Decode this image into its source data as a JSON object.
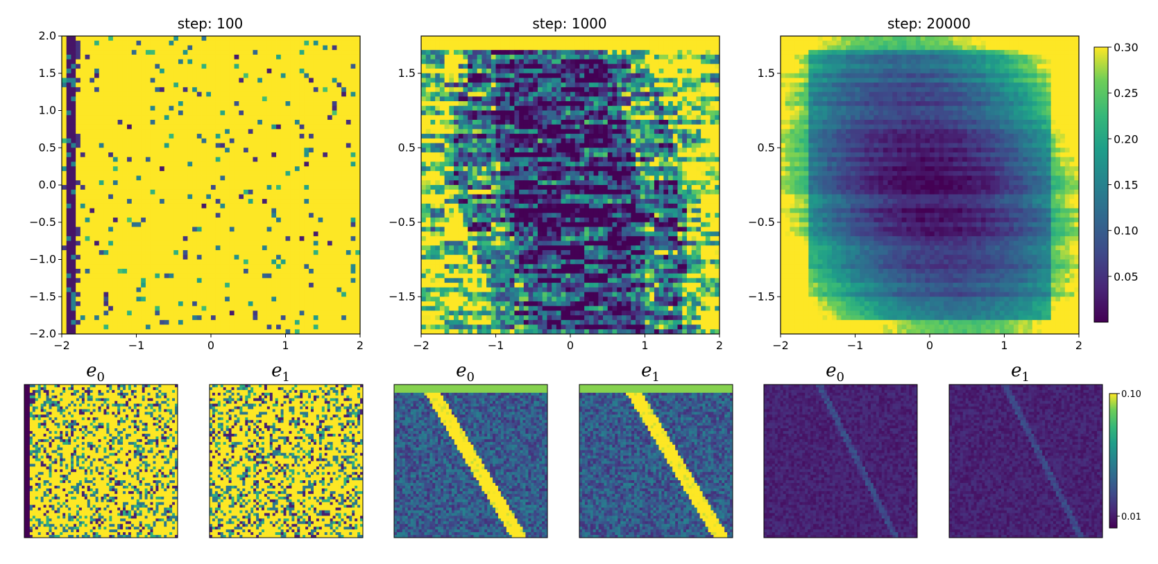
{
  "chart_data": [
    {
      "type": "heatmap",
      "title": "step: 100",
      "xlim": [
        -2,
        2
      ],
      "ylim": [
        -2,
        2
      ],
      "xticks": [
        "−2",
        "−1",
        "0",
        "1",
        "2"
      ],
      "yticks": [
        "2.0",
        "1.5",
        "1.0",
        "0.5",
        "0.0",
        "−0.5",
        "−1.0",
        "−1.5",
        "−2.0"
      ],
      "pattern": "mostly-high"
    },
    {
      "type": "heatmap",
      "title": "step: 1000",
      "xlim": [
        -2,
        2
      ],
      "ylim": [
        -2,
        2
      ],
      "xticks": [
        "−2",
        "−1",
        "0",
        "1",
        "2"
      ],
      "yticks": [
        "1.5",
        "0.5",
        "−0.5",
        "−1.5"
      ],
      "pattern": "noisy-mixed"
    },
    {
      "type": "heatmap",
      "title": "step: 20000",
      "xlim": [
        -2,
        2
      ],
      "ylim": [
        -2,
        2
      ],
      "xticks": [
        "−2",
        "−1",
        "0",
        "1",
        "2"
      ],
      "yticks": [
        "1.5",
        "0.5",
        "−0.5",
        "−1.5"
      ],
      "pattern": "smooth-basin"
    }
  ],
  "colorbar_main": {
    "colormap": "viridis",
    "range": [
      0.0,
      0.3
    ],
    "ticks": [
      "0.30",
      "0.25",
      "0.20",
      "0.15",
      "0.10",
      "0.05"
    ]
  },
  "colorbar_error": {
    "colormap": "viridis",
    "scale": "log",
    "ticks": [
      "0.10",
      "0.01"
    ]
  },
  "error_maps": [
    {
      "label": "e",
      "sub": "0",
      "step_group": "100"
    },
    {
      "label": "e",
      "sub": "1",
      "step_group": "100"
    },
    {
      "label": "e",
      "sub": "0",
      "step_group": "1000"
    },
    {
      "label": "e",
      "sub": "1",
      "step_group": "1000"
    },
    {
      "label": "e",
      "sub": "0",
      "step_group": "20000"
    },
    {
      "label": "e",
      "sub": "1",
      "step_group": "20000"
    }
  ]
}
